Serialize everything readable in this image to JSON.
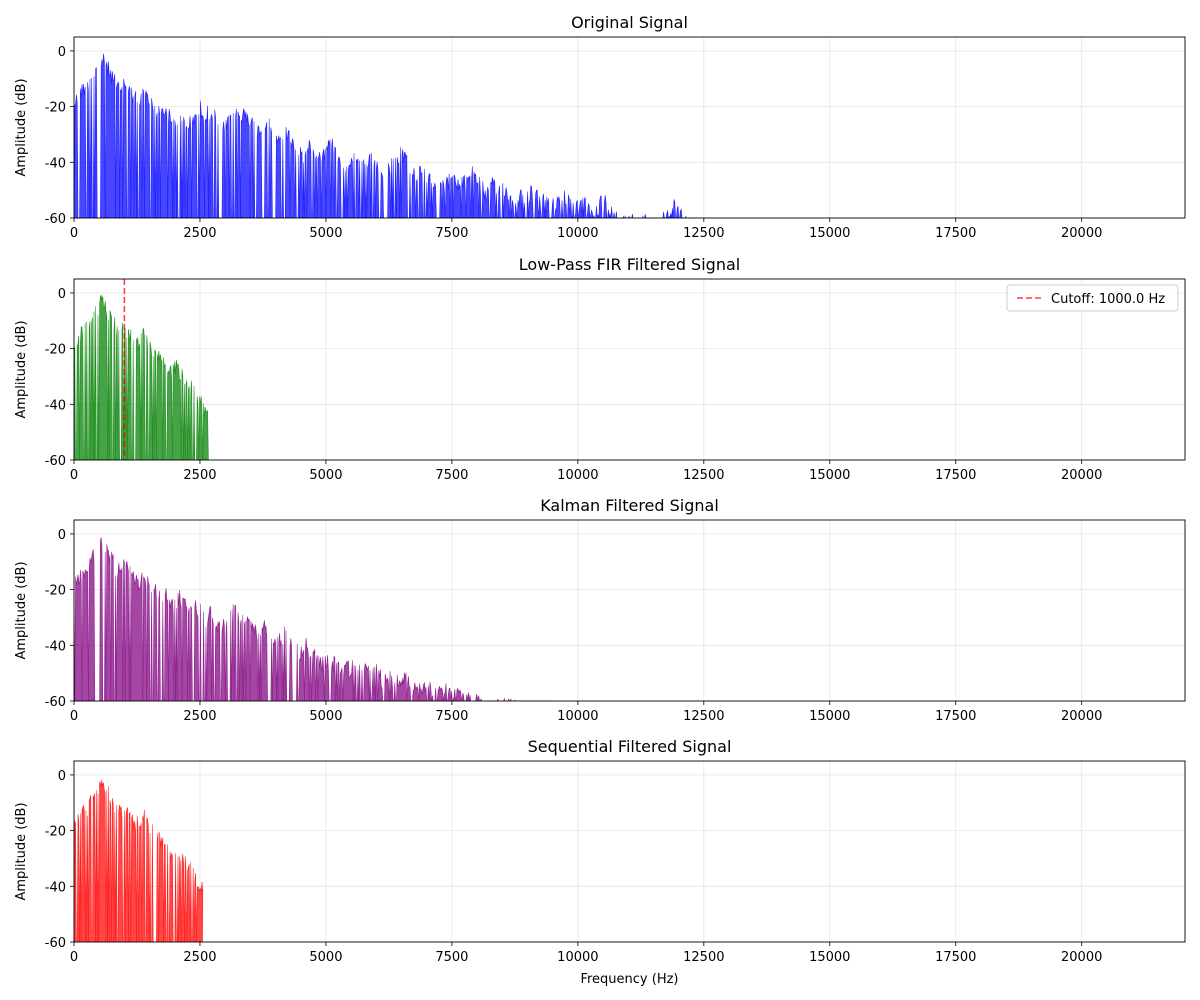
{
  "chart_data": [
    {
      "type": "area",
      "title": "Original Signal",
      "xlabel": "",
      "ylabel": "Amplitude (dB)",
      "xlim": [
        0,
        22050
      ],
      "ylim": [
        -60,
        5
      ],
      "x_ticks": [
        0,
        2500,
        5000,
        7500,
        10000,
        12500,
        15000,
        17500,
        20000
      ],
      "y_ticks": [
        0,
        -20,
        -40,
        -60
      ],
      "grid": true,
      "series": [
        {
          "color": "#0000ff",
          "harmonics": [
            [
              100,
              -18
            ],
            [
              200,
              -10
            ],
            [
              300,
              -8
            ],
            [
              400,
              -6
            ],
            [
              500,
              -4
            ],
            [
              560,
              0
            ],
            [
              700,
              -6
            ],
            [
              800,
              -10
            ],
            [
              900,
              -9
            ],
            [
              1000,
              -8
            ],
            [
              1100,
              -12
            ],
            [
              1200,
              -13
            ],
            [
              1300,
              -16
            ],
            [
              1400,
              -12
            ],
            [
              1500,
              -15
            ],
            [
              1600,
              -17
            ],
            [
              1700,
              -20
            ],
            [
              1800,
              -18
            ],
            [
              1900,
              -22
            ],
            [
              2000,
              -24
            ],
            [
              2100,
              -20
            ],
            [
              2200,
              -22
            ],
            [
              2300,
              -24
            ],
            [
              2400,
              -23
            ],
            [
              2500,
              -17
            ],
            [
              2700,
              -18
            ],
            [
              2900,
              -25
            ],
            [
              3100,
              -25
            ],
            [
              3200,
              -18
            ],
            [
              3400,
              -19
            ],
            [
              3600,
              -24
            ],
            [
              3700,
              -25
            ],
            [
              3800,
              -22
            ],
            [
              4000,
              -28
            ],
            [
              4200,
              -26
            ],
            [
              4400,
              -30
            ],
            [
              4500,
              -33
            ],
            [
              4700,
              -30
            ],
            [
              4900,
              -33
            ],
            [
              5100,
              -30
            ],
            [
              5300,
              -36
            ],
            [
              5500,
              -35
            ],
            [
              5700,
              -36
            ],
            [
              5900,
              -36
            ],
            [
              6100,
              -40
            ],
            [
              6300,
              -38
            ],
            [
              6500,
              -33
            ],
            [
              6700,
              -42
            ],
            [
              6900,
              -40
            ],
            [
              7100,
              -42
            ],
            [
              7300,
              -43
            ],
            [
              7500,
              -42
            ],
            [
              7700,
              -44
            ],
            [
              7900,
              -40
            ],
            [
              8100,
              -49
            ],
            [
              8300,
              -45
            ],
            [
              8500,
              -45
            ],
            [
              8700,
              -50
            ],
            [
              8900,
              -48
            ],
            [
              9100,
              -47
            ],
            [
              9300,
              -49
            ],
            [
              9500,
              -51
            ],
            [
              9700,
              -48
            ],
            [
              9900,
              -55
            ],
            [
              10100,
              -50
            ],
            [
              10300,
              -53
            ],
            [
              10500,
              -50
            ],
            [
              10700,
              -55
            ],
            [
              10900,
              -55
            ],
            [
              11100,
              -56
            ],
            [
              11300,
              -57
            ],
            [
              11500,
              -57
            ],
            [
              11700,
              -56
            ],
            [
              11900,
              -52
            ],
            [
              12000,
              -54
            ],
            [
              12700,
              -59
            ]
          ]
        }
      ]
    },
    {
      "type": "area",
      "title": "Low-Pass FIR Filtered Signal",
      "xlabel": "",
      "ylabel": "Amplitude (dB)",
      "xlim": [
        0,
        22050
      ],
      "ylim": [
        -60,
        5
      ],
      "x_ticks": [
        0,
        2500,
        5000,
        7500,
        10000,
        12500,
        15000,
        17500,
        20000
      ],
      "y_ticks": [
        0,
        -20,
        -40,
        -60
      ],
      "grid": true,
      "legend": "Cutoff: 1000.0 Hz",
      "legend_position": "top-right",
      "cutoff": 1000,
      "cutoff_color": "#ff0000",
      "series": [
        {
          "color": "#008000",
          "harmonics": [
            [
              100,
              -18
            ],
            [
              200,
              -10
            ],
            [
              300,
              -8
            ],
            [
              400,
              -6
            ],
            [
              500,
              -4
            ],
            [
              560,
              0
            ],
            [
              700,
              -6
            ],
            [
              800,
              -10
            ],
            [
              900,
              -9
            ],
            [
              1000,
              -9
            ],
            [
              1100,
              -12
            ],
            [
              1200,
              -13
            ],
            [
              1300,
              -16
            ],
            [
              1400,
              -12
            ],
            [
              1500,
              -15
            ],
            [
              1600,
              -17
            ],
            [
              1700,
              -20
            ],
            [
              1800,
              -22
            ],
            [
              1900,
              -24
            ],
            [
              2000,
              -23
            ],
            [
              2100,
              -26
            ],
            [
              2200,
              -28
            ],
            [
              2300,
              -30
            ],
            [
              2400,
              -34
            ],
            [
              2500,
              -38
            ],
            [
              2550,
              -45
            ],
            [
              2650,
              -57
            ]
          ]
        }
      ]
    },
    {
      "type": "area",
      "title": "Kalman Filtered Signal",
      "xlabel": "",
      "ylabel": "Amplitude (dB)",
      "xlim": [
        0,
        22050
      ],
      "ylim": [
        -60,
        5
      ],
      "x_ticks": [
        0,
        2500,
        5000,
        7500,
        10000,
        12500,
        15000,
        17500,
        20000
      ],
      "y_ticks": [
        0,
        -20,
        -40,
        -60
      ],
      "grid": true,
      "series": [
        {
          "color": "#800080",
          "harmonics": [
            [
              100,
              -18
            ],
            [
              200,
              -10
            ],
            [
              300,
              -8
            ],
            [
              400,
              -6
            ],
            [
              500,
              -4
            ],
            [
              560,
              0
            ],
            [
              700,
              -6
            ],
            [
              800,
              -10
            ],
            [
              900,
              -9
            ],
            [
              1000,
              -8
            ],
            [
              1100,
              -12
            ],
            [
              1200,
              -13
            ],
            [
              1300,
              -16
            ],
            [
              1400,
              -12
            ],
            [
              1500,
              -15
            ],
            [
              1600,
              -17
            ],
            [
              1700,
              -20
            ],
            [
              1800,
              -18
            ],
            [
              1900,
              -22
            ],
            [
              2000,
              -24
            ],
            [
              2100,
              -20
            ],
            [
              2200,
              -22
            ],
            [
              2300,
              -24
            ],
            [
              2400,
              -23
            ],
            [
              2500,
              -24
            ],
            [
              2700,
              -25
            ],
            [
              2900,
              -28
            ],
            [
              3100,
              -30
            ],
            [
              3200,
              -24
            ],
            [
              3400,
              -27
            ],
            [
              3600,
              -32
            ],
            [
              3800,
              -30
            ],
            [
              4000,
              -33
            ],
            [
              4200,
              -32
            ],
            [
              4400,
              -38
            ],
            [
              4600,
              -37
            ],
            [
              4800,
              -40
            ],
            [
              5000,
              -42
            ],
            [
              5200,
              -42
            ],
            [
              5400,
              -44
            ],
            [
              5600,
              -43
            ],
            [
              5800,
              -45
            ],
            [
              6000,
              -46
            ],
            [
              6200,
              -47
            ],
            [
              6400,
              -49
            ],
            [
              6600,
              -48
            ],
            [
              6800,
              -51
            ],
            [
              7000,
              -51
            ],
            [
              7200,
              -52
            ],
            [
              7400,
              -53
            ],
            [
              7600,
              -53
            ],
            [
              7800,
              -55
            ],
            [
              8000,
              -55
            ],
            [
              8200,
              -57
            ],
            [
              8400,
              -57
            ],
            [
              8600,
              -57
            ],
            [
              8800,
              -58
            ],
            [
              9000,
              -59
            ],
            [
              9200,
              -59
            ],
            [
              9500,
              -59
            ]
          ]
        }
      ]
    },
    {
      "type": "area",
      "title": "Sequential Filtered Signal",
      "xlabel": "Frequency (Hz)",
      "ylabel": "Amplitude (dB)",
      "xlim": [
        0,
        22050
      ],
      "ylim": [
        -60,
        5
      ],
      "x_ticks": [
        0,
        2500,
        5000,
        7500,
        10000,
        12500,
        15000,
        17500,
        20000
      ],
      "y_ticks": [
        0,
        -20,
        -40,
        -60
      ],
      "grid": true,
      "series": [
        {
          "color": "#ff0000",
          "harmonics": [
            [
              100,
              -18
            ],
            [
              200,
              -10
            ],
            [
              300,
              -8
            ],
            [
              400,
              -6
            ],
            [
              500,
              -4
            ],
            [
              560,
              0
            ],
            [
              700,
              -6
            ],
            [
              800,
              -10
            ],
            [
              900,
              -9
            ],
            [
              1000,
              -9
            ],
            [
              1100,
              -12
            ],
            [
              1200,
              -13
            ],
            [
              1300,
              -16
            ],
            [
              1400,
              -12
            ],
            [
              1500,
              -15
            ],
            [
              1600,
              -17
            ],
            [
              1700,
              -20
            ],
            [
              1800,
              -22
            ],
            [
              1900,
              -24
            ],
            [
              2000,
              -23
            ],
            [
              2100,
              -26
            ],
            [
              2200,
              -28
            ],
            [
              2300,
              -30
            ],
            [
              2400,
              -34
            ],
            [
              2500,
              -38
            ],
            [
              2550,
              -47
            ]
          ]
        }
      ]
    }
  ]
}
